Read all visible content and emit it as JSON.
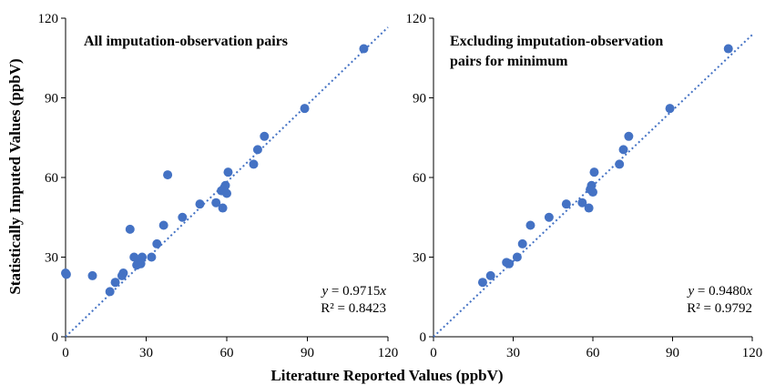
{
  "figure": {
    "y_axis_title": "Statistically Imputed Values (ppbV)",
    "x_axis_title": "Literature Reported Values (ppbV)",
    "colors": {
      "points": "#4472C4",
      "trendline": "#4472C4",
      "axes": "#000000"
    }
  },
  "chart_data": [
    {
      "type": "scatter",
      "title_lines": [
        "All imputation-observation pairs"
      ],
      "xlim": [
        0,
        120
      ],
      "ylim": [
        0,
        120
      ],
      "xticks": [
        "0",
        "30",
        "60",
        "90",
        "120"
      ],
      "yticks": [
        "0",
        "30",
        "60",
        "90",
        "120"
      ],
      "grid": false,
      "equation": {
        "y_prefix": "y",
        "equals_slope": " = 0.9715",
        "x_suffix": "x",
        "r2": "R² = 0.8423"
      },
      "trendline": {
        "slope": 0.9715,
        "intercept": 0
      },
      "points": [
        [
          0,
          24
        ],
        [
          0.3,
          23.5
        ],
        [
          10,
          23
        ],
        [
          16.5,
          17
        ],
        [
          18.5,
          20.5
        ],
        [
          21,
          23
        ],
        [
          21.5,
          24
        ],
        [
          24,
          40.5
        ],
        [
          25.5,
          30
        ],
        [
          26.5,
          27
        ],
        [
          27.5,
          28
        ],
        [
          28,
          27.5
        ],
        [
          28.5,
          30
        ],
        [
          32,
          30
        ],
        [
          34,
          35
        ],
        [
          36.5,
          42
        ],
        [
          38,
          61
        ],
        [
          43.5,
          45
        ],
        [
          50,
          50
        ],
        [
          56,
          50.5
        ],
        [
          58,
          55
        ],
        [
          58.5,
          48.5
        ],
        [
          59,
          56
        ],
        [
          59.5,
          57
        ],
        [
          60,
          54
        ],
        [
          60.5,
          62
        ],
        [
          70,
          65
        ],
        [
          71.5,
          70.5
        ],
        [
          74,
          75.5
        ],
        [
          89,
          86
        ],
        [
          111,
          108.5
        ]
      ]
    },
    {
      "type": "scatter",
      "title_lines": [
        "Excluding imputation-observation",
        "pairs for minimum"
      ],
      "xlim": [
        0,
        120
      ],
      "ylim": [
        0,
        120
      ],
      "xticks": [
        "0",
        "30",
        "60",
        "90",
        "120"
      ],
      "yticks": [
        "0",
        "30",
        "60",
        "90",
        "120"
      ],
      "grid": false,
      "equation": {
        "y_prefix": "y",
        "equals_slope": " = 0.9480",
        "x_suffix": "x",
        "r2": "R² = 0.9792"
      },
      "trendline": {
        "slope": 0.948,
        "intercept": 0
      },
      "points": [
        [
          18.5,
          20.5
        ],
        [
          21.5,
          23
        ],
        [
          27.5,
          28
        ],
        [
          28.5,
          27.5
        ],
        [
          31.5,
          30
        ],
        [
          33.5,
          35
        ],
        [
          36.5,
          42
        ],
        [
          43.5,
          45
        ],
        [
          50,
          50
        ],
        [
          56,
          50.5
        ],
        [
          58.5,
          48.5
        ],
        [
          59,
          55.5
        ],
        [
          59.5,
          57
        ],
        [
          60,
          54.5
        ],
        [
          60.5,
          62
        ],
        [
          70,
          65
        ],
        [
          71.5,
          70.5
        ],
        [
          73.5,
          75.5
        ],
        [
          89,
          86
        ],
        [
          111,
          108.5
        ]
      ]
    }
  ]
}
